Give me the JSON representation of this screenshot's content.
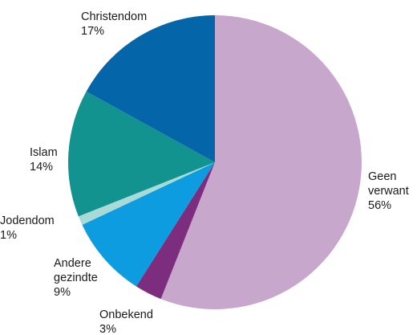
{
  "chart_data": {
    "type": "pie",
    "slices": [
      {
        "label_lines": [
          "Geen",
          "verwant"
        ],
        "value_label": "56%",
        "value": 56,
        "color": "#c8a7cc"
      },
      {
        "label_lines": [
          "Onbekend"
        ],
        "value_label": "3%",
        "value": 3,
        "color": "#7d2d7e"
      },
      {
        "label_lines": [
          "Andere",
          "gezindte"
        ],
        "value_label": "9%",
        "value": 9,
        "color": "#0d9ce0"
      },
      {
        "label_lines": [
          "Jodendom"
        ],
        "value_label": "1%",
        "value": 1,
        "color": "#a8dbd8"
      },
      {
        "label_lines": [
          "Islam"
        ],
        "value_label": "14%",
        "value": 14,
        "color": "#12938f"
      },
      {
        "label_lines": [
          "Christendom"
        ],
        "value_label": "17%",
        "value": 17,
        "color": "#0565a9"
      }
    ]
  }
}
